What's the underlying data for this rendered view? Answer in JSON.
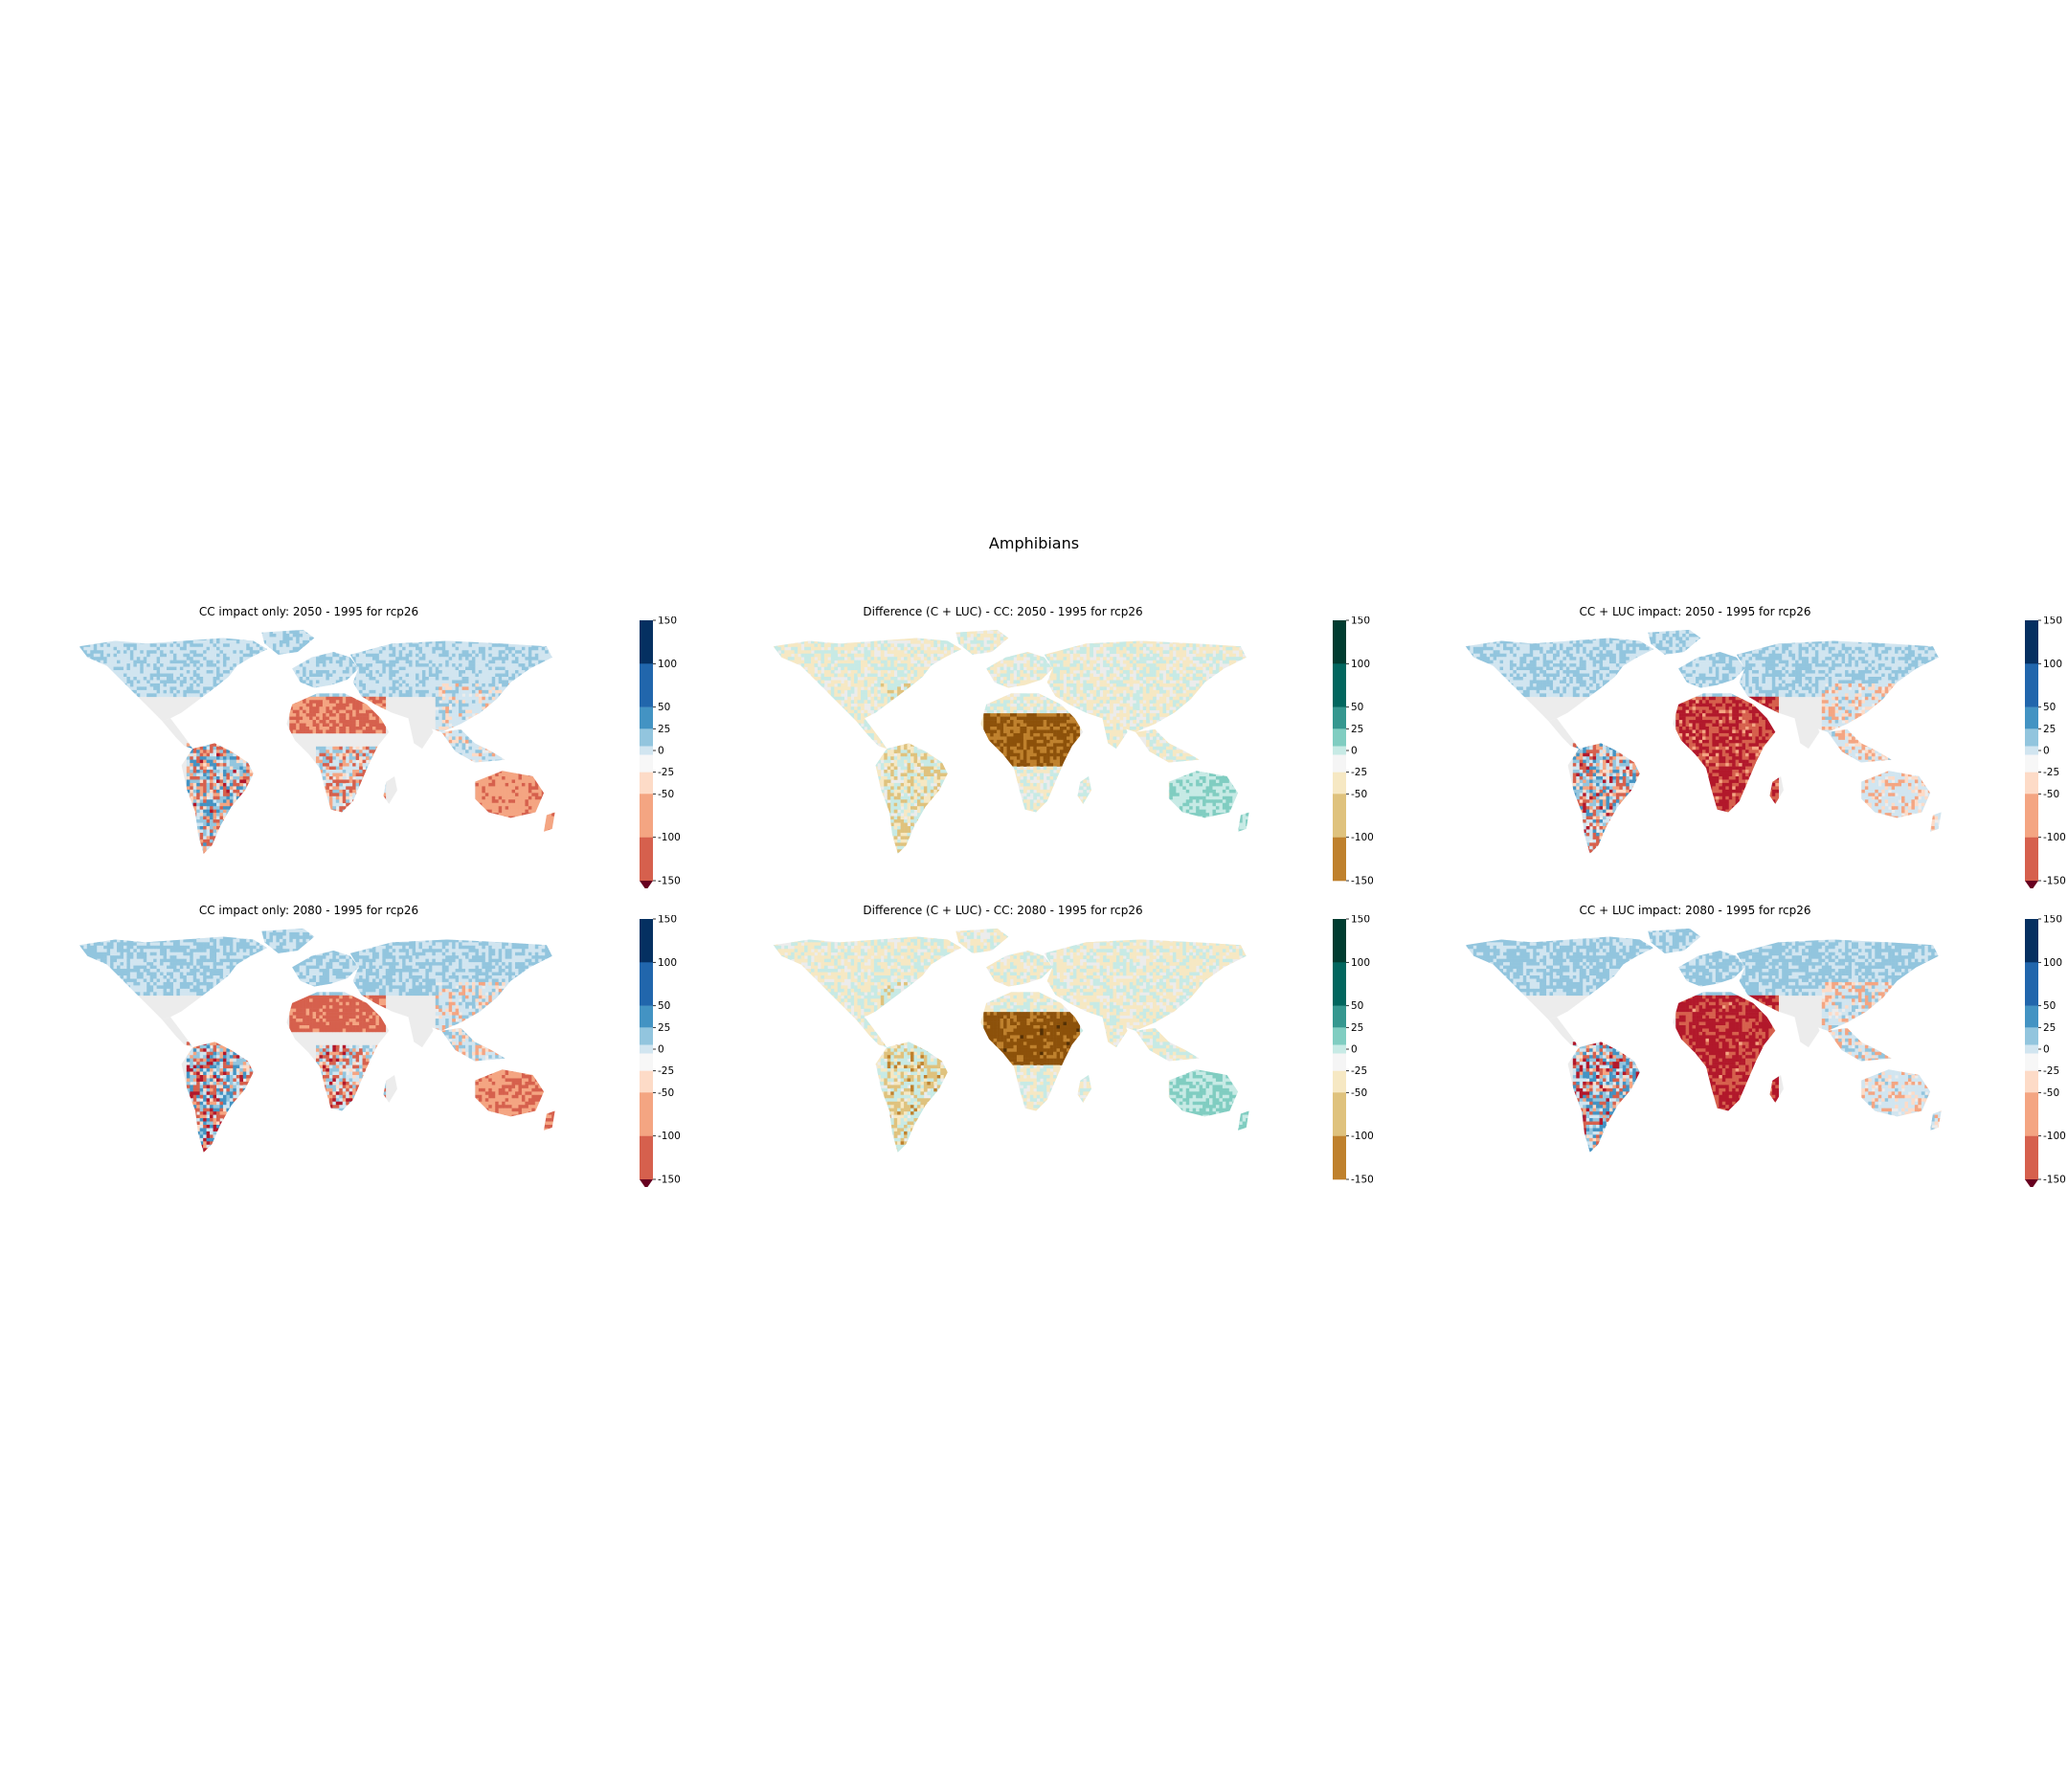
{
  "figure": {
    "suptitle": "Amphibians"
  },
  "colors": {
    "land_base": "#ececec",
    "rdbu": [
      "#67001f",
      "#b2182b",
      "#d6604d",
      "#f4a582",
      "#fddbc7",
      "#f7f7f7",
      "#d1e5f0",
      "#92c5de",
      "#4393c3",
      "#2166ac",
      "#053061"
    ],
    "brbg": [
      "#543005",
      "#8c510a",
      "#bf812d",
      "#dfc27d",
      "#f6e8c3",
      "#f5f5f5",
      "#c7eae5",
      "#80cdc1",
      "#35978f",
      "#01665e",
      "#003c30"
    ]
  },
  "panels": [
    {
      "id": "cc-2050",
      "title": "CC impact only: 2050 - 1995 for rcp26",
      "colormap": "rdbu",
      "period": "2050",
      "colorbar": {
        "ticks": [
          "150",
          "100",
          "50",
          "25",
          "0",
          "-25",
          "-50",
          "-100",
          "-150"
        ],
        "extend": "min"
      }
    },
    {
      "id": "diff-2050",
      "title": "Difference (C + LUC) - CC: 2050 - 1995 for rcp26",
      "colormap": "brbg",
      "period": "2050",
      "colorbar": {
        "ticks": [
          "150",
          "100",
          "50",
          "25",
          "0",
          "-25",
          "-50",
          "-100",
          "-150"
        ],
        "extend": "none"
      }
    },
    {
      "id": "ccluc-2050",
      "title": "CC + LUC impact: 2050 - 1995 for rcp26",
      "colormap": "rdbu",
      "period": "2050",
      "colorbar": {
        "ticks": [
          "150",
          "100",
          "50",
          "25",
          "0",
          "-25",
          "-50",
          "-100",
          "-150"
        ],
        "extend": "min"
      }
    },
    {
      "id": "cc-2080",
      "title": "CC impact only: 2080 - 1995 for rcp26",
      "colormap": "rdbu",
      "period": "2080",
      "colorbar": {
        "ticks": [
          "150",
          "100",
          "50",
          "25",
          "0",
          "-25",
          "-50",
          "-100",
          "-150"
        ],
        "extend": "min"
      }
    },
    {
      "id": "diff-2080",
      "title": "Difference (C + LUC) - CC: 2080 - 1995 for rcp26",
      "colormap": "brbg",
      "period": "2080",
      "colorbar": {
        "ticks": [
          "150",
          "100",
          "50",
          "25",
          "0",
          "-25",
          "-50",
          "-100",
          "-150"
        ],
        "extend": "none"
      }
    },
    {
      "id": "ccluc-2080",
      "title": "CC + LUC impact: 2080 - 1995 for rcp26",
      "colormap": "rdbu",
      "period": "2080",
      "colorbar": {
        "ticks": [
          "150",
          "100",
          "50",
          "25",
          "0",
          "-25",
          "-50",
          "-100",
          "-150"
        ],
        "extend": "min"
      }
    }
  ]
}
